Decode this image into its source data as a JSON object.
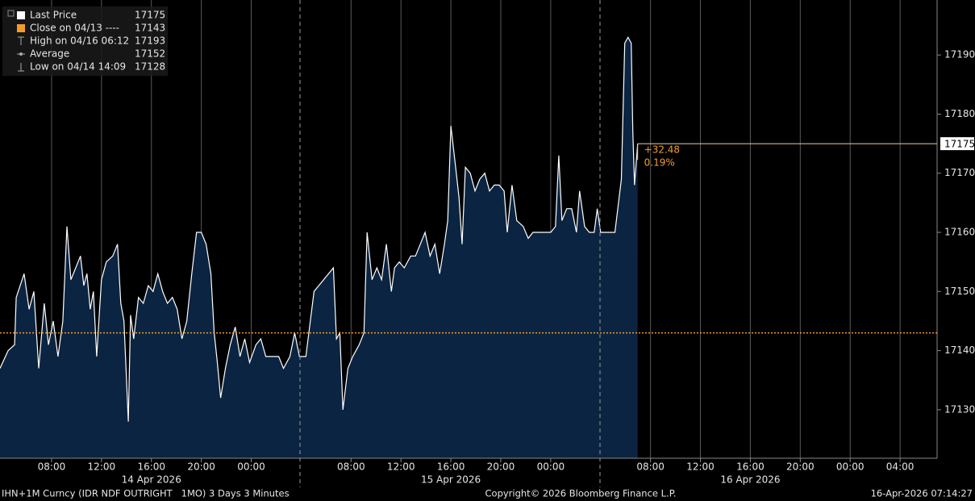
{
  "chart_data": {
    "type": "area",
    "series": [
      {
        "color": "#ffffff",
        "fill": "#0b2442",
        "values": [
          17137,
          17140,
          17141,
          17149,
          17153,
          17147,
          17150,
          17137,
          17148,
          17141,
          17145,
          17139,
          17145,
          17161,
          17152,
          17154,
          17156,
          17151,
          17153,
          17147,
          17150,
          17139,
          17152,
          17155,
          17156,
          17158,
          17148,
          17145,
          17128,
          17146,
          17142,
          17149,
          17148,
          17151,
          17150,
          17153,
          17150,
          17148,
          17149,
          17147,
          17142,
          17145,
          17153,
          17160,
          17160,
          17158,
          17153,
          17143,
          17138,
          17132,
          17137,
          17141,
          17144,
          17139,
          17142,
          17138,
          17141,
          17142,
          17139,
          17139,
          17139,
          17137,
          17139,
          17143,
          17139,
          17139,
          17150,
          17154,
          17142,
          17143,
          17130,
          17137,
          17139,
          17141,
          17143,
          17160,
          17152,
          17154,
          17152,
          17158,
          17150,
          17154,
          17155,
          17154,
          17156,
          17156,
          17158,
          17160,
          17156,
          17158,
          17153,
          17158,
          17162,
          17178,
          17171,
          17166,
          17158,
          17171,
          17170,
          17167,
          17169,
          17170,
          17167,
          17168,
          17168,
          17167,
          17160,
          17168,
          17162,
          17161,
          17159,
          17160,
          17160,
          17160,
          17160,
          17161,
          17173,
          17162,
          17164,
          17164,
          17160,
          17167,
          17161,
          17160,
          17160,
          17164,
          17160,
          17160,
          17160,
          17169,
          17192,
          17193,
          17192,
          17177,
          17168,
          17175
        ]
      }
    ],
    "x": [
      "2026-04-14 03:52",
      "2026-04-14 04:31",
      "2026-04-14 05:02",
      "2026-04-14 05:10",
      "2026-04-14 05:48",
      "2026-04-14 06:12",
      "2026-04-14 06:35",
      "2026-04-14 06:58",
      "2026-04-14 07:25",
      "2026-04-14 07:45",
      "2026-04-14 08:08",
      "2026-04-14 08:31",
      "2026-04-14 08:54",
      "2026-04-14 09:14",
      "2026-04-14 09:33",
      "2026-04-14 09:56",
      "2026-04-14 10:19",
      "2026-04-14 10:35",
      "2026-04-14 10:50",
      "2026-04-14 11:06",
      "2026-04-14 11:21",
      "2026-04-14 11:37",
      "2026-04-14 12:00",
      "2026-04-14 12:23",
      "2026-04-14 12:54",
      "2026-04-14 13:17",
      "2026-04-14 13:33",
      "2026-04-14 13:48",
      "2026-04-14 14:09",
      "2026-04-14 14:20",
      "2026-04-14 14:35",
      "2026-04-14 14:58",
      "2026-04-14 15:21",
      "2026-04-14 15:45",
      "2026-04-14 16:08",
      "2026-04-14 16:31",
      "2026-04-14 16:54",
      "2026-04-14 17:17",
      "2026-04-14 17:41",
      "2026-04-14 18:04",
      "2026-04-14 18:27",
      "2026-04-14 18:50",
      "2026-04-14 19:14",
      "2026-04-14 19:37",
      "2026-04-14 20:00",
      "2026-04-14 20:23",
      "2026-04-14 20:46",
      "2026-04-14 21:02",
      "2026-04-14 21:17",
      "2026-04-14 21:33",
      "2026-04-14 21:56",
      "2026-04-14 22:19",
      "2026-04-14 22:43",
      "2026-04-14 23:06",
      "2026-04-14 23:29",
      "2026-04-14 23:52",
      "2026-04-15 00:23",
      "2026-04-15 00:46",
      "2026-04-15 01:10",
      "2026-04-15 01:41",
      "2026-04-15 02:12",
      "2026-04-15 02:35",
      "2026-04-15 03:06",
      "2026-04-15 03:29",
      "2026-04-15 03:52",
      "2026-04-15 04:23",
      "2026-04-15 05:02",
      "2026-04-15 06:35",
      "2026-04-15 06:50",
      "2026-04-15 07:06",
      "2026-04-15 07:21",
      "2026-04-15 07:45",
      "2026-04-15 08:08",
      "2026-04-15 08:39",
      "2026-04-15 09:02",
      "2026-04-15 09:17",
      "2026-04-15 09:41",
      "2026-04-15 10:04",
      "2026-04-15 10:27",
      "2026-04-15 10:50",
      "2026-04-15 11:14",
      "2026-04-15 11:29",
      "2026-04-15 11:52",
      "2026-04-15 12:16",
      "2026-04-15 12:47",
      "2026-04-15 13:10",
      "2026-04-15 13:33",
      "2026-04-15 13:56",
      "2026-04-15 14:20",
      "2026-04-15 14:43",
      "2026-04-15 15:06",
      "2026-04-15 15:29",
      "2026-04-15 15:45",
      "2026-04-15 16:00",
      "2026-04-15 16:23",
      "2026-04-15 16:39",
      "2026-04-15 16:54",
      "2026-04-15 17:10",
      "2026-04-15 17:33",
      "2026-04-15 17:56",
      "2026-04-15 18:19",
      "2026-04-15 18:43",
      "2026-04-15 19:06",
      "2026-04-15 19:29",
      "2026-04-15 19:52",
      "2026-04-15 20:16",
      "2026-04-15 20:31",
      "2026-04-15 20:54",
      "2026-04-15 21:17",
      "2026-04-15 21:48",
      "2026-04-15 22:12",
      "2026-04-15 22:35",
      "2026-04-15 23:06",
      "2026-04-15 23:37",
      "2026-04-16 00:00",
      "2026-04-16 00:23",
      "2026-04-16 00:39",
      "2026-04-16 00:54",
      "2026-04-16 01:17",
      "2026-04-16 01:41",
      "2026-04-16 02:04",
      "2026-04-16 02:19",
      "2026-04-16 02:43",
      "2026-04-16 03:06",
      "2026-04-16 03:29",
      "2026-04-16 03:44",
      "2026-04-16 04:00",
      "2026-04-16 04:54",
      "2026-04-16 05:09",
      "2026-04-16 05:40",
      "2026-04-16 05:56",
      "2026-04-16 06:12",
      "2026-04-16 06:27",
      "2026-04-16 06:35",
      "2026-04-16 06:43",
      "2026-04-16 06:58"
    ],
    "xlim": [
      "2026-04-14 03:52",
      "2026-04-17 06:58"
    ],
    "xticks": [
      {
        "value": "2026-04-14 08:00",
        "label": "08:00"
      },
      {
        "value": "2026-04-14 12:00",
        "label": "12:00"
      },
      {
        "value": "2026-04-14 16:00",
        "label": "16:00"
      },
      {
        "value": "2026-04-14 20:00",
        "label": "20:00"
      },
      {
        "value": "2026-04-15 00:00",
        "label": "00:00"
      },
      {
        "value": "2026-04-15 08:00",
        "label": "08:00"
      },
      {
        "value": "2026-04-15 12:00",
        "label": "12:00"
      },
      {
        "value": "2026-04-15 16:00",
        "label": "16:00"
      },
      {
        "value": "2026-04-15 20:00",
        "label": "20:00"
      },
      {
        "value": "2026-04-16 00:00",
        "label": "00:00"
      },
      {
        "value": "2026-04-16 08:00",
        "label": "08:00"
      },
      {
        "value": "2026-04-16 12:00",
        "label": "12:00"
      },
      {
        "value": "2026-04-16 16:00",
        "label": "16:00"
      },
      {
        "value": "2026-04-16 20:00",
        "label": "20:00"
      },
      {
        "value": "2026-04-17 00:00",
        "label": "00:00"
      },
      {
        "value": "2026-04-17 04:00",
        "label": "04:00"
      }
    ],
    "date_labels": [
      "14 Apr 2026",
      "15 Apr 2026",
      "16 Apr 2026"
    ],
    "ylim": [
      17121.8,
      17199.3
    ],
    "yticks": [
      17130,
      17140,
      17150,
      17160,
      17170,
      17180,
      17190
    ],
    "grid": "vertical",
    "legend": [
      {
        "label": "Last Price",
        "value": 17175,
        "color": "#ffffff"
      },
      {
        "label": "Close on 04/13 ----",
        "value": 17143,
        "color": "#f39c2b"
      },
      {
        "label": "High on 04/16 06:12",
        "value": 17193,
        "color": "#aaaaaa"
      },
      {
        "label": "Average",
        "value": 17152,
        "color": "#aaaaaa"
      },
      {
        "label": "Low on 04/14 14:09",
        "value": 17128,
        "color": "#aaaaaa"
      }
    ],
    "annotations": [
      "+32.48",
      "0.19%"
    ],
    "footer": {
      "ticker": "IHN+1M Curncy (IDR NDF OUTRIGHT   1MO) 3 Days 3 Minutes",
      "copyright": "Copyright© 2026 Bloomberg Finance L.P.",
      "timestamp": "16-Apr-2026 07:14:27"
    }
  }
}
